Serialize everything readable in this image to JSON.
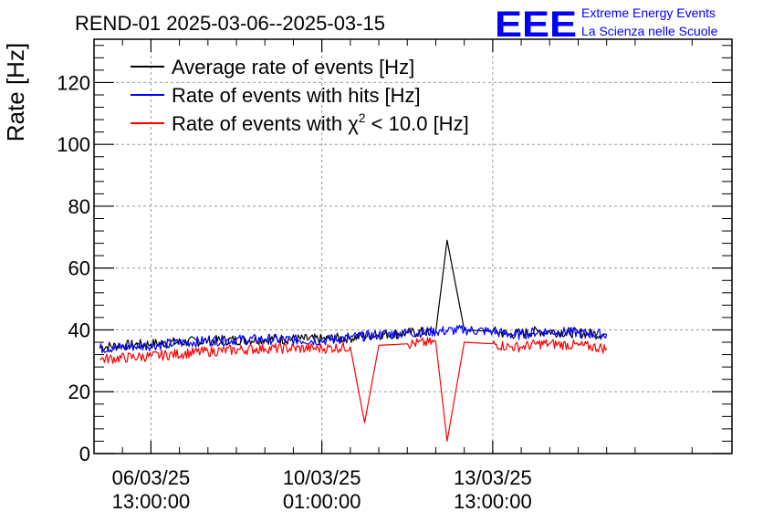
{
  "chart_data": {
    "type": "line",
    "title": "REND-01 2025-03-06--2025-03-15",
    "xlabel": "",
    "ylabel": "Rate [Hz]",
    "ylim": [
      0,
      134
    ],
    "xlim": [
      -1.0,
      10.2
    ],
    "yticks": [
      0,
      20,
      40,
      60,
      80,
      100,
      120
    ],
    "xticks": [
      {
        "pos": 0.0,
        "line1": "06/03/25",
        "line2": "13:00:00"
      },
      {
        "pos": 3.0,
        "line1": "10/03/25",
        "line2": "01:00:00"
      },
      {
        "pos": 6.0,
        "line1": "13/03/25",
        "line2": "13:00:00"
      }
    ],
    "grid": true,
    "legend_position": "top-left",
    "legend": [
      {
        "label_pre": "Average rate of events [Hz]",
        "sup": "",
        "label_post": "",
        "color": "#000000"
      },
      {
        "label_pre": "Rate of events with hits [Hz]",
        "sup": "",
        "label_post": "",
        "color": "#0000ff"
      },
      {
        "label_pre": "Rate of events with χ",
        "sup": "2",
        "label_post": " < 10.0 [Hz]",
        "color": "#ff0000"
      }
    ],
    "series": [
      {
        "name": "Average rate of events [Hz]",
        "color": "#000000",
        "x": [
          -0.9,
          0.0,
          1.0,
          2.0,
          3.0,
          3.5,
          4.0,
          4.5,
          5.0,
          5.2,
          5.5,
          6.0,
          6.3,
          6.5,
          6.8,
          7.0,
          7.5,
          8.0
        ],
        "y": [
          34.5,
          35.5,
          36.5,
          37.0,
          37.0,
          37.5,
          38.5,
          39.0,
          39.5,
          69.0,
          40.0,
          39.5,
          38.5,
          39.0,
          39.5,
          39.5,
          39.0,
          38.5
        ]
      },
      {
        "name": "Rate of events with hits [Hz]",
        "color": "#0000ff",
        "x": [
          -0.9,
          0.0,
          1.0,
          2.0,
          3.0,
          3.5,
          4.0,
          4.5,
          5.0,
          5.5,
          6.0,
          6.3,
          6.5,
          6.8,
          7.0,
          7.5,
          8.0
        ],
        "y": [
          34.0,
          35.0,
          36.5,
          37.0,
          36.5,
          37.5,
          38.5,
          39.0,
          39.5,
          40.0,
          39.5,
          38.5,
          38.5,
          39.5,
          39.5,
          39.0,
          38.5
        ]
      },
      {
        "name": "Rate of events with χ2 < 10.0 [Hz]",
        "color": "#ff0000",
        "x": [
          -0.9,
          0.0,
          1.0,
          2.0,
          3.0,
          3.5,
          3.75,
          4.0,
          4.5,
          5.0,
          5.2,
          5.5,
          6.0,
          6.3,
          6.5,
          6.8,
          7.0,
          7.5,
          8.0
        ],
        "y": [
          30.5,
          31.5,
          33.0,
          34.0,
          34.0,
          34.5,
          10.0,
          35.0,
          35.5,
          36.0,
          4.0,
          36.0,
          35.5,
          34.5,
          34.5,
          35.5,
          35.5,
          35.0,
          34.0
        ]
      }
    ]
  },
  "logo": {
    "mark": "EEE",
    "line1": "Extreme Energy Events",
    "line2": "La Scienza nelle Scuole",
    "color": "#0000ff"
  }
}
